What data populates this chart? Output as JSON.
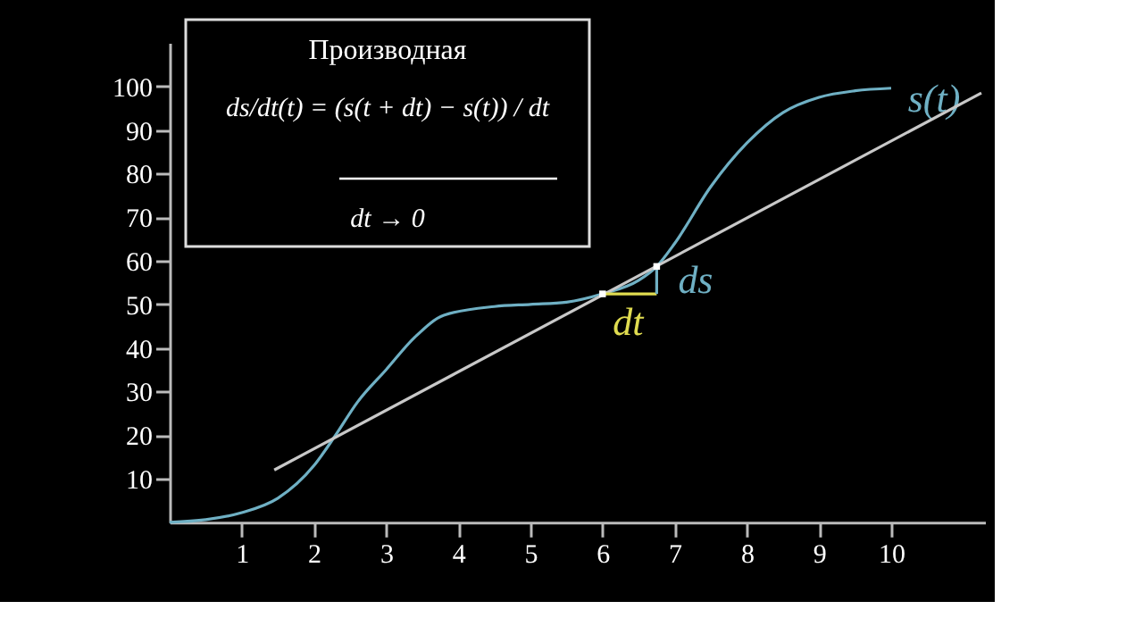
{
  "chart_data": {
    "type": "line",
    "title": "Производная",
    "annotations": [
      "ds/dt(t) = (s(t + dt) − s(t)) / dt",
      "dt → 0"
    ],
    "xlim": [
      0,
      11.3
    ],
    "ylim": [
      0,
      110
    ],
    "xticks": [
      1,
      2,
      3,
      4,
      5,
      6,
      7,
      8,
      9,
      10
    ],
    "yticks": [
      10,
      20,
      30,
      40,
      50,
      60,
      70,
      80,
      90,
      100
    ],
    "grid": false,
    "marker": "none",
    "line_style": "solid",
    "series": [
      {
        "name": "s(t)",
        "color": "#6fb0c4",
        "x": [
          0,
          0.5,
          1,
          1.5,
          2,
          2.3,
          2.6,
          3,
          3.4,
          3.8,
          4.5,
          5,
          5.5,
          6,
          6.5,
          6.75,
          7,
          7.5,
          8,
          8.5,
          9,
          9.5,
          10
        ],
        "values": [
          0,
          0.6,
          2.2,
          5.5,
          13,
          20,
          27.5,
          35,
          42.5,
          47.5,
          49.5,
          50,
          50.5,
          52.4,
          55.5,
          58.7,
          64,
          77,
          87,
          94,
          97.5,
          99,
          99.6
        ]
      },
      {
        "name": null,
        "color": "#c8c8c8",
        "x": [
          1.45,
          11.25
        ],
        "values": [
          12,
          98.5
        ]
      },
      {
        "name": "dt",
        "color": "#e0dc50",
        "x": [
          6,
          6.75
        ],
        "values": [
          52.4,
          52.4
        ]
      },
      {
        "name": "ds",
        "color": "#6fb0c4",
        "x": [
          6.75,
          6.75
        ],
        "values": [
          52.4,
          58.7
        ]
      },
      {
        "name": null,
        "type": "scatter",
        "marker": "square",
        "color": "#ffffff",
        "x": [
          6,
          6.75
        ],
        "values": [
          52.4,
          58.7
        ]
      }
    ]
  }
}
